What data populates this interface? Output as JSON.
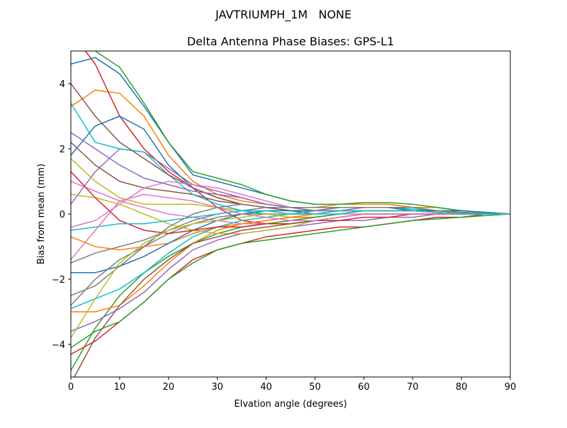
{
  "chart_data": {
    "type": "line",
    "suptitle": "JAVTRIUMPH_1M   NONE",
    "title": "Delta Antenna Phase Biases: GPS-L1",
    "xlabel": "Elvation angle (degrees)",
    "ylabel": "Bias from mean (mm)",
    "xlim": [
      0,
      90
    ],
    "ylim": [
      -5,
      5
    ],
    "xticks": [
      0,
      10,
      20,
      30,
      40,
      50,
      60,
      70,
      80,
      90
    ],
    "yticks": [
      -4,
      -2,
      0,
      2,
      4
    ],
    "ytick_labels": [
      "−4",
      "−2",
      "0",
      "2",
      "4"
    ],
    "grid": false,
    "colors": [
      "#1f77b4",
      "#ff7f0e",
      "#2ca02c",
      "#d62728",
      "#9467bd",
      "#8c564b",
      "#e377c2",
      "#7f7f7f",
      "#bcbd22",
      "#17becf"
    ],
    "x": [
      0,
      5,
      10,
      15,
      20,
      25,
      30,
      35,
      40,
      45,
      50,
      55,
      60,
      65,
      70,
      75,
      80,
      85,
      90
    ],
    "series": [
      {
        "values": [
          4.6,
          4.8,
          4.3,
          3.3,
          2.2,
          1.2,
          1.0,
          0.8,
          0.6,
          0.4,
          0.3,
          0.3,
          0.3,
          0.3,
          0.2,
          0.2,
          0.1,
          0.05,
          0
        ]
      },
      {
        "values": [
          3.3,
          3.8,
          3.7,
          3.0,
          1.8,
          1.0,
          0.6,
          0.4,
          0.3,
          0.2,
          0.2,
          0.3,
          0.3,
          0.3,
          0.2,
          0.2,
          0.1,
          0.05,
          0
        ]
      },
      {
        "values": [
          5.5,
          5.0,
          4.5,
          3.4,
          2.2,
          1.3,
          1.1,
          0.9,
          0.6,
          0.4,
          0.3,
          0.3,
          0.35,
          0.35,
          0.3,
          0.2,
          0.1,
          0.05,
          0
        ]
      },
      {
        "values": [
          5.6,
          4.6,
          3.0,
          2.0,
          1.3,
          0.8,
          0.2,
          -0.2,
          -0.3,
          -0.3,
          -0.2,
          -0.1,
          0,
          0,
          0,
          0,
          0,
          0,
          0
        ]
      },
      {
        "values": [
          0.3,
          1.3,
          2.0,
          1.9,
          1.4,
          0.9,
          0.7,
          0.5,
          0.3,
          0.2,
          0.1,
          0.1,
          0.2,
          0.2,
          0.1,
          0.1,
          0.05,
          0.02,
          0
        ]
      },
      {
        "values": [
          2.2,
          1.5,
          1.0,
          0.8,
          0.7,
          0.6,
          0.4,
          0.3,
          0.2,
          0.1,
          0,
          0.1,
          0.1,
          0.1,
          0.1,
          0.05,
          0.02,
          0.01,
          0
        ]
      },
      {
        "values": [
          1.0,
          0.7,
          0.4,
          0.2,
          0,
          -0.1,
          -0.2,
          -0.3,
          -0.3,
          -0.2,
          -0.1,
          0,
          0,
          0,
          0,
          0,
          0,
          0,
          0
        ]
      },
      {
        "values": [
          -1.5,
          -1.2,
          -1.0,
          -0.8,
          -0.5,
          -0.2,
          0,
          0.1,
          0.2,
          0.2,
          0.2,
          0.2,
          0.2,
          0.2,
          0.1,
          0.1,
          0.05,
          0,
          0
        ]
      },
      {
        "values": [
          1.7,
          1.0,
          0.5,
          0.3,
          0.3,
          0.3,
          0.2,
          0.1,
          0,
          -0.1,
          -0.1,
          0,
          0.1,
          0.1,
          0.1,
          0.05,
          0.02,
          0.01,
          0
        ]
      },
      {
        "values": [
          3.4,
          2.2,
          2.0,
          1.9,
          1.2,
          0.6,
          0.3,
          0.1,
          0,
          0,
          0.1,
          0.2,
          0.2,
          0.2,
          0.15,
          0.1,
          0.05,
          0.02,
          0
        ]
      },
      {
        "values": [
          1.8,
          2.7,
          3.0,
          2.6,
          1.5,
          0.8,
          0.5,
          0.3,
          0.2,
          0.1,
          0.1,
          0.2,
          0.2,
          0.2,
          0.2,
          0.1,
          0.1,
          0.05,
          0
        ]
      },
      {
        "values": [
          -0.7,
          -1.0,
          -1.1,
          -1.0,
          -0.9,
          -0.6,
          -0.4,
          -0.3,
          -0.2,
          -0.1,
          -0.1,
          0,
          0.1,
          0.1,
          0.1,
          0.05,
          0,
          0,
          0
        ]
      },
      {
        "values": [
          -4.8,
          -3.5,
          -2.5,
          -1.8,
          -1.3,
          -0.9,
          -0.6,
          -0.4,
          -0.3,
          -0.2,
          -0.1,
          0,
          0.1,
          0.1,
          0.1,
          0.05,
          0,
          0,
          0
        ]
      },
      {
        "values": [
          -4.3,
          -3.9,
          -3.3,
          -2.7,
          -2.0,
          -1.4,
          -1.1,
          -0.9,
          -0.7,
          -0.6,
          -0.5,
          -0.4,
          -0.4,
          -0.3,
          -0.2,
          -0.1,
          -0.1,
          0,
          0
        ]
      },
      {
        "values": [
          -3.6,
          -3.3,
          -2.9,
          -2.4,
          -1.7,
          -1.1,
          -0.8,
          -0.6,
          -0.5,
          -0.4,
          -0.3,
          -0.2,
          -0.2,
          -0.1,
          -0.1,
          0,
          0,
          0,
          0
        ]
      },
      {
        "values": [
          4.0,
          3.0,
          2.2,
          1.7,
          1.2,
          0.8,
          0.5,
          0.3,
          0.2,
          0.1,
          0.1,
          0.2,
          0.2,
          0.2,
          0.1,
          0.1,
          0.05,
          0,
          0
        ]
      },
      {
        "values": [
          -0.4,
          -0.2,
          0.3,
          0.8,
          1.0,
          0.9,
          0.8,
          0.6,
          0.4,
          0.2,
          0.1,
          0.1,
          0.1,
          0.1,
          0.1,
          0.05,
          0,
          0,
          0
        ]
      },
      {
        "values": [
          -2.8,
          -2.0,
          -1.4,
          -1.0,
          -0.6,
          -0.3,
          -0.1,
          0,
          0,
          0,
          0,
          0.1,
          0.1,
          0.1,
          0.1,
          0.05,
          0,
          0,
          0
        ]
      },
      {
        "values": [
          0.6,
          0.5,
          0.3,
          0,
          -0.3,
          -0.5,
          -0.6,
          -0.6,
          -0.5,
          -0.4,
          -0.2,
          -0.1,
          0,
          0,
          0,
          0,
          0,
          0,
          0
        ]
      },
      {
        "values": [
          -2.9,
          -2.6,
          -2.3,
          -1.8,
          -1.2,
          -0.7,
          -0.4,
          -0.2,
          -0.1,
          0,
          0,
          0,
          0.1,
          0.1,
          0.1,
          0.05,
          0,
          0,
          0
        ]
      },
      {
        "values": [
          -1.8,
          -1.8,
          -1.6,
          -1.3,
          -0.9,
          -0.5,
          -0.2,
          0,
          0.1,
          0.1,
          0.1,
          0.2,
          0.2,
          0.2,
          0.1,
          0.1,
          0.05,
          0,
          0
        ]
      },
      {
        "values": [
          -3.0,
          -3.0,
          -2.8,
          -2.2,
          -1.5,
          -0.9,
          -0.5,
          -0.3,
          -0.2,
          -0.1,
          0,
          0.1,
          0.1,
          0.1,
          0.1,
          0.05,
          0,
          0,
          0
        ]
      },
      {
        "values": [
          -4.1,
          -3.6,
          -3.3,
          -2.7,
          -2.0,
          -1.5,
          -1.1,
          -0.9,
          -0.8,
          -0.7,
          -0.6,
          -0.5,
          -0.4,
          -0.3,
          -0.2,
          -0.15,
          -0.1,
          -0.05,
          0
        ]
      },
      {
        "values": [
          1.3,
          0.5,
          -0.2,
          -0.5,
          -0.6,
          -0.5,
          -0.4,
          -0.4,
          -0.3,
          -0.3,
          -0.2,
          -0.2,
          -0.1,
          -0.1,
          0,
          0,
          0,
          0,
          0
        ]
      },
      {
        "values": [
          2.5,
          2.0,
          1.5,
          1.1,
          0.9,
          0.7,
          0.6,
          0.5,
          0.3,
          0.2,
          0.1,
          0.1,
          0.1,
          0.1,
          0.1,
          0.05,
          0,
          0,
          0
        ]
      },
      {
        "values": [
          -5.2,
          -3.8,
          -2.8,
          -2.0,
          -1.4,
          -0.9,
          -0.7,
          -0.5,
          -0.4,
          -0.3,
          -0.2,
          -0.1,
          0,
          0,
          0,
          0,
          0,
          0,
          0
        ]
      },
      {
        "values": [
          -1.4,
          -0.5,
          0.4,
          0.6,
          0.5,
          0.4,
          0.2,
          0,
          -0.1,
          -0.2,
          -0.2,
          -0.1,
          0,
          0,
          0,
          0,
          0,
          0,
          0
        ]
      },
      {
        "values": [
          -2.5,
          -2.2,
          -1.6,
          -1.0,
          -0.4,
          0,
          0.2,
          0.3,
          0.2,
          0.2,
          0.1,
          0.2,
          0.2,
          0.2,
          0.2,
          0.1,
          0.05,
          0,
          0
        ]
      },
      {
        "values": [
          -3.8,
          -2.6,
          -1.5,
          -0.9,
          -0.5,
          -0.3,
          -0.2,
          -0.1,
          0,
          0,
          0,
          0.1,
          0.1,
          0.1,
          0.1,
          0.05,
          0,
          0,
          0
        ]
      },
      {
        "values": [
          -0.5,
          -0.4,
          -0.3,
          -0.3,
          -0.2,
          -0.1,
          0,
          0.1,
          0.1,
          0,
          0,
          0.1,
          0.1,
          0.1,
          0.1,
          0.05,
          0,
          0,
          0
        ]
      }
    ]
  }
}
